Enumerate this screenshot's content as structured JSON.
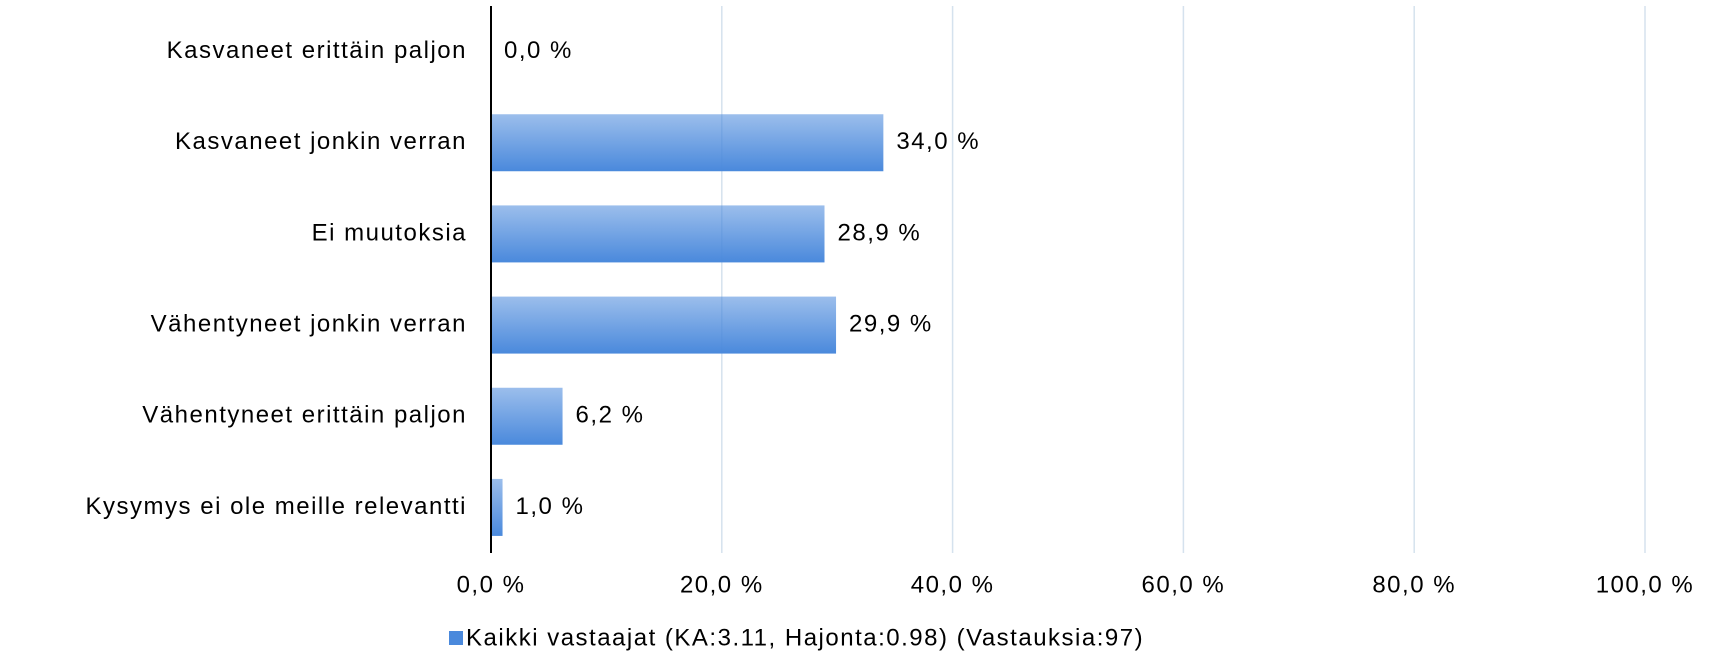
{
  "chart_data": {
    "type": "bar",
    "orientation": "horizontal",
    "categories": [
      "Kasvaneet erittäin paljon",
      "Kasvaneet jonkin verran",
      "Ei muutoksia",
      "Vähentyneet jonkin verran",
      "Vähentyneet erittäin paljon",
      "Kysymys ei ole meille relevantti"
    ],
    "series": [
      {
        "name": "Kaikki vastaajat (KA:3.11, Hajonta:0.98) (Vastauksia:97)",
        "color": "#4a89dc",
        "values": [
          0.0,
          34.0,
          28.9,
          29.9,
          6.2,
          1.0
        ],
        "value_labels": [
          "0,0 %",
          "34,0 %",
          "28,9 %",
          "29,9 %",
          "6,2 %",
          "1,0 %"
        ]
      }
    ],
    "xlim": [
      0,
      100
    ],
    "xticks": [
      {
        "value": 0,
        "label": "0,0 %"
      },
      {
        "value": 20,
        "label": "20,0 %"
      },
      {
        "value": 40,
        "label": "40,0 %"
      },
      {
        "value": 60,
        "label": "60,0 %"
      },
      {
        "value": 80,
        "label": "80,0 %"
      },
      {
        "value": 100,
        "label": "100,0 %"
      }
    ],
    "grid": true,
    "legend": "bottom"
  }
}
